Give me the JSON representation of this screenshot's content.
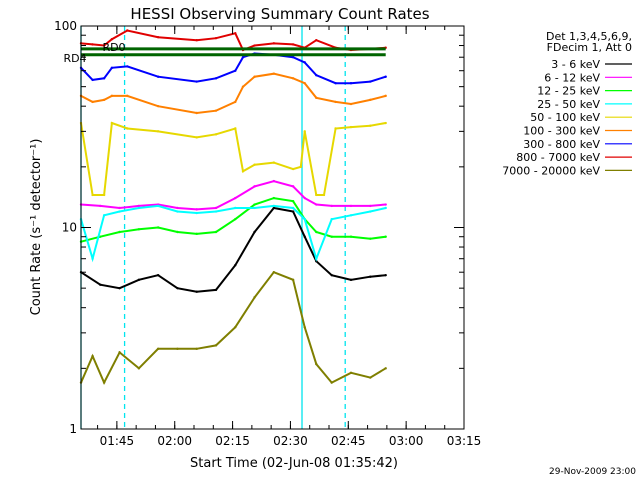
{
  "chart_data": {
    "type": "line",
    "title": "HESSI Observing Summary Count Rates",
    "xlabel": "Start Time (02-Jun-08 01:35:42)",
    "ylabel": "Count Rate (s⁻¹ detector⁻¹)",
    "y_scale": "log",
    "ylim": [
      1,
      100
    ],
    "xlim": [
      "01:35:42",
      "03:15:00"
    ],
    "x_ticks": [
      "01:45",
      "02:00",
      "02:15",
      "02:30",
      "02:45",
      "03:00",
      "03:15"
    ],
    "y_ticks": [
      "1",
      "10",
      "100"
    ],
    "legend_header": [
      "Det 1,3,4,5,6,9,",
      "FDecim 1, Att 0"
    ],
    "legend_placement": "right",
    "annotations": [
      "RD0",
      "RD4"
    ],
    "footer": "29-Nov-2009 23:00",
    "vlines_solid_min": [
      0,
      57.3
    ],
    "vlines_dashed_min": [
      11.3,
      68.5
    ],
    "series": [
      {
        "name": "3 - 6 keV",
        "color": "#000000",
        "points": [
          [
            0,
            6.0
          ],
          [
            5,
            5.2
          ],
          [
            10,
            5.0
          ],
          [
            15,
            5.5
          ],
          [
            20,
            5.8
          ],
          [
            25,
            5.0
          ],
          [
            30,
            4.8
          ],
          [
            35,
            4.9
          ],
          [
            40,
            6.5
          ],
          [
            45,
            9.5
          ],
          [
            50,
            12.5
          ],
          [
            55,
            12.0
          ],
          [
            58,
            9.0
          ],
          [
            61,
            6.8
          ],
          [
            65,
            5.8
          ],
          [
            70,
            5.5
          ],
          [
            75,
            5.7
          ],
          [
            79,
            5.8
          ]
        ]
      },
      {
        "name": "6 - 12 keV",
        "color": "#ff00ff",
        "points": [
          [
            0,
            13.0
          ],
          [
            5,
            12.8
          ],
          [
            10,
            12.5
          ],
          [
            15,
            12.8
          ],
          [
            20,
            13.0
          ],
          [
            25,
            12.5
          ],
          [
            30,
            12.3
          ],
          [
            35,
            12.5
          ],
          [
            40,
            14.0
          ],
          [
            45,
            16.0
          ],
          [
            50,
            17.0
          ],
          [
            55,
            16.0
          ],
          [
            58,
            14.0
          ],
          [
            61,
            13.0
          ],
          [
            65,
            12.8
          ],
          [
            70,
            12.8
          ],
          [
            75,
            12.8
          ],
          [
            79,
            13.0
          ]
        ]
      },
      {
        "name": "12 - 25 keV",
        "color": "#00ff00",
        "points": [
          [
            0,
            8.5
          ],
          [
            5,
            9.0
          ],
          [
            10,
            9.5
          ],
          [
            15,
            9.8
          ],
          [
            20,
            10.0
          ],
          [
            25,
            9.5
          ],
          [
            30,
            9.3
          ],
          [
            35,
            9.5
          ],
          [
            40,
            11.0
          ],
          [
            45,
            13.0
          ],
          [
            50,
            14.0
          ],
          [
            55,
            13.5
          ],
          [
            58,
            11.0
          ],
          [
            61,
            9.5
          ],
          [
            65,
            9.0
          ],
          [
            70,
            9.0
          ],
          [
            75,
            8.8
          ],
          [
            79,
            9.0
          ]
        ]
      },
      {
        "name": "25 - 50 keV",
        "color": "#00ffff",
        "points": [
          [
            0,
            11.0
          ],
          [
            3,
            7.0
          ],
          [
            6,
            11.5
          ],
          [
            10,
            12.0
          ],
          [
            15,
            12.5
          ],
          [
            20,
            12.8
          ],
          [
            25,
            12.0
          ],
          [
            30,
            11.8
          ],
          [
            35,
            12.0
          ],
          [
            40,
            12.5
          ],
          [
            45,
            12.5
          ],
          [
            50,
            12.8
          ],
          [
            55,
            12.5
          ],
          [
            58,
            11.0
          ],
          [
            61,
            7.0
          ],
          [
            65,
            11.0
          ],
          [
            70,
            11.5
          ],
          [
            75,
            12.0
          ],
          [
            79,
            12.5
          ]
        ]
      },
      {
        "name": "50 - 100 keV",
        "color": "#e6d800",
        "points": [
          [
            0,
            33.0
          ],
          [
            3,
            14.5
          ],
          [
            6,
            14.5
          ],
          [
            8,
            33.0
          ],
          [
            12,
            31.0
          ],
          [
            20,
            30.0
          ],
          [
            30,
            28.0
          ],
          [
            35,
            29.0
          ],
          [
            40,
            31.0
          ],
          [
            42,
            19.0
          ],
          [
            45,
            20.5
          ],
          [
            50,
            21.0
          ],
          [
            55,
            19.5
          ],
          [
            57,
            20.0
          ],
          [
            58,
            30.0
          ],
          [
            61,
            14.5
          ],
          [
            63,
            14.5
          ],
          [
            66,
            31.0
          ],
          [
            70,
            31.5
          ],
          [
            75,
            32.0
          ],
          [
            79,
            33.0
          ]
        ]
      },
      {
        "name": "100 - 300 keV",
        "color": "#ff8000",
        "points": [
          [
            0,
            45.0
          ],
          [
            3,
            42.0
          ],
          [
            6,
            43.0
          ],
          [
            8,
            45.0
          ],
          [
            12,
            45.0
          ],
          [
            20,
            40.0
          ],
          [
            30,
            37.0
          ],
          [
            35,
            38.0
          ],
          [
            40,
            42.0
          ],
          [
            42,
            50.0
          ],
          [
            45,
            56.0
          ],
          [
            50,
            58.0
          ],
          [
            55,
            55.0
          ],
          [
            58,
            52.0
          ],
          [
            61,
            44.0
          ],
          [
            66,
            42.0
          ],
          [
            70,
            41.0
          ],
          [
            75,
            43.0
          ],
          [
            79,
            45.0
          ]
        ]
      },
      {
        "name": "300 - 800 keV",
        "color": "#0000ff",
        "points": [
          [
            0,
            62.0
          ],
          [
            3,
            54.0
          ],
          [
            6,
            55.0
          ],
          [
            8,
            62.0
          ],
          [
            12,
            63.0
          ],
          [
            20,
            56.0
          ],
          [
            30,
            53.0
          ],
          [
            35,
            55.0
          ],
          [
            40,
            60.0
          ],
          [
            42,
            70.0
          ],
          [
            45,
            73.0
          ],
          [
            50,
            72.0
          ],
          [
            55,
            70.0
          ],
          [
            58,
            66.0
          ],
          [
            61,
            57.0
          ],
          [
            66,
            52.0
          ],
          [
            70,
            52.0
          ],
          [
            75,
            53.0
          ],
          [
            79,
            56.0
          ]
        ]
      },
      {
        "name": "800 - 7000 keV",
        "color": "#e00000",
        "points": [
          [
            0,
            82.0
          ],
          [
            3,
            81.0
          ],
          [
            6,
            80.0
          ],
          [
            8,
            86.0
          ],
          [
            12,
            95.0
          ],
          [
            20,
            88.0
          ],
          [
            30,
            85.0
          ],
          [
            35,
            87.0
          ],
          [
            40,
            92.0
          ],
          [
            42,
            76.0
          ],
          [
            45,
            80.0
          ],
          [
            50,
            82.0
          ],
          [
            55,
            81.0
          ],
          [
            58,
            78.0
          ],
          [
            61,
            85.0
          ],
          [
            66,
            78.0
          ],
          [
            70,
            76.0
          ],
          [
            75,
            77.0
          ],
          [
            79,
            78.0
          ]
        ]
      },
      {
        "name": "7000 - 20000 keV",
        "color": "#7f7f00",
        "points": [
          [
            0,
            1.7
          ],
          [
            3,
            2.3
          ],
          [
            6,
            1.7
          ],
          [
            10,
            2.4
          ],
          [
            15,
            2.0
          ],
          [
            20,
            2.5
          ],
          [
            25,
            2.5
          ],
          [
            30,
            2.5
          ],
          [
            35,
            2.6
          ],
          [
            40,
            3.2
          ],
          [
            45,
            4.5
          ],
          [
            50,
            6.0
          ],
          [
            55,
            5.5
          ],
          [
            58,
            3.2
          ],
          [
            61,
            2.1
          ],
          [
            65,
            1.7
          ],
          [
            70,
            1.9
          ],
          [
            75,
            1.8
          ],
          [
            79,
            2.0
          ]
        ]
      },
      {
        "name": "RD0",
        "color": "#006400",
        "points": [
          [
            0,
            77.0
          ],
          [
            79,
            77.0
          ]
        ]
      },
      {
        "name": "RD4",
        "color": "#006400",
        "points": [
          [
            0,
            72.0
          ],
          [
            79,
            72.0
          ]
        ]
      }
    ]
  }
}
